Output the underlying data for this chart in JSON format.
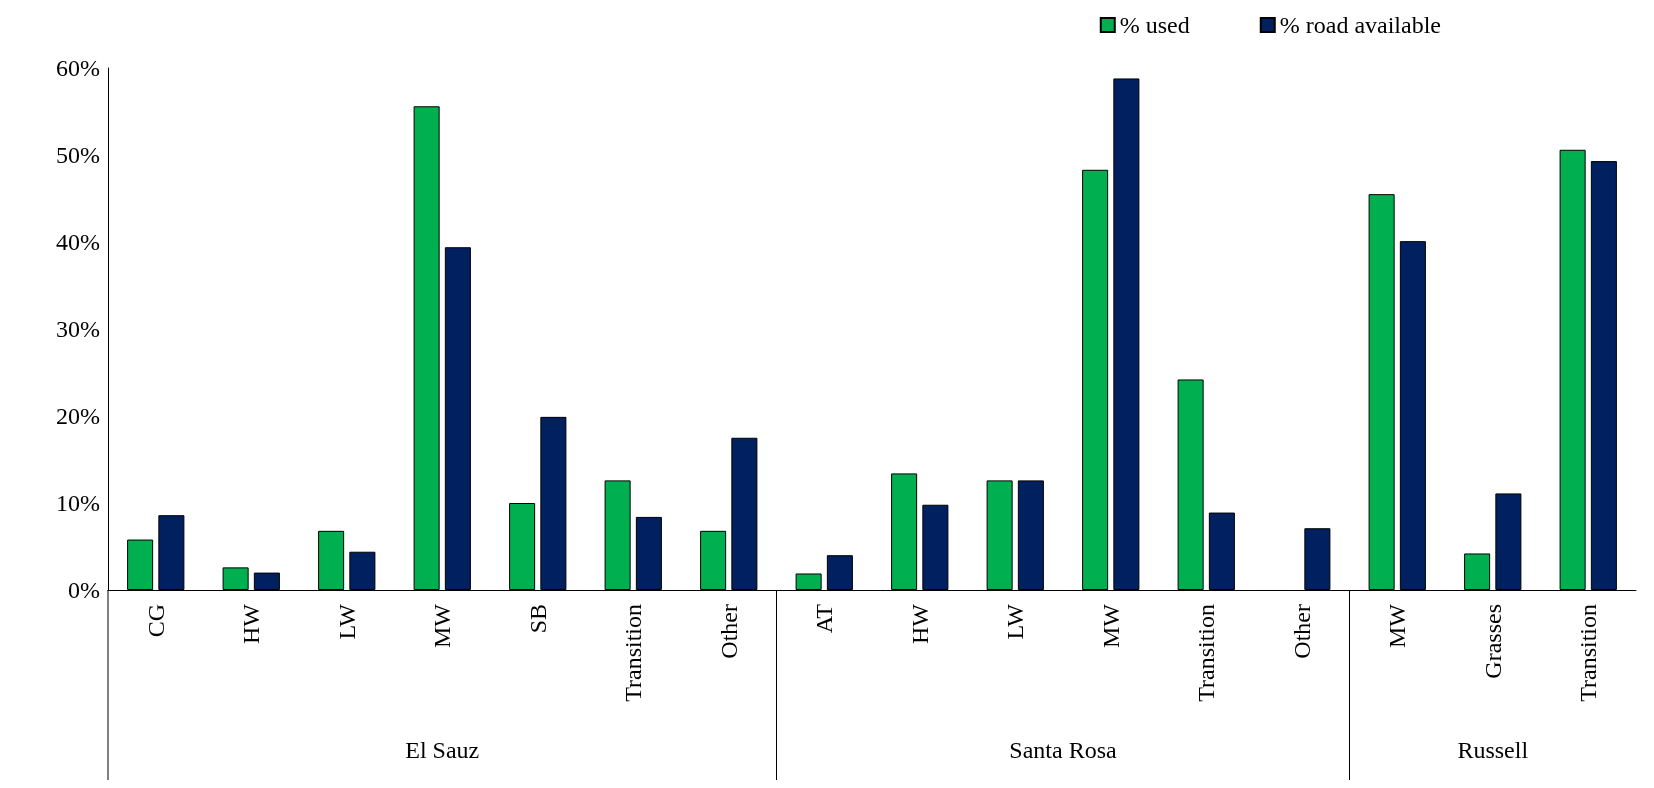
{
  "chart_data": {
    "type": "bar",
    "categories": [
      "CG",
      "HW",
      "LW",
      "MW",
      "SB",
      "Transition",
      "Other",
      "AT",
      "HW",
      "LW",
      "MW",
      "Transition",
      "Other",
      "MW",
      "Grasses",
      "Transition"
    ],
    "annotations": [
      "El Sauz",
      "Santa Rosa",
      "Russell"
    ],
    "series": [
      {
        "name": "% used",
        "color": "#00b050",
        "values": [
          5.8,
          2.6,
          6.8,
          55.6,
          10.0,
          12.6,
          6.8,
          1.9,
          13.4,
          12.6,
          48.3,
          24.2,
          null,
          45.5,
          4.2,
          50.6
        ]
      },
      {
        "name": "% road available",
        "color": "#002060",
        "values": [
          8.6,
          2.0,
          4.4,
          39.4,
          19.9,
          8.4,
          17.5,
          4.0,
          9.8,
          12.6,
          58.8,
          8.9,
          7.1,
          40.1,
          11.1,
          49.3
        ]
      }
    ],
    "ylim": [
      0,
      60
    ],
    "yticks": [
      {
        "value": 0,
        "label": "0%"
      },
      {
        "value": 10,
        "label": "10%"
      },
      {
        "value": 20,
        "label": "20%"
      },
      {
        "value": 30,
        "label": "30%"
      },
      {
        "value": 40,
        "label": "40%"
      },
      {
        "value": 50,
        "label": "50%"
      },
      {
        "value": 60,
        "label": "60%"
      }
    ],
    "grid": false,
    "legend": "top right"
  }
}
